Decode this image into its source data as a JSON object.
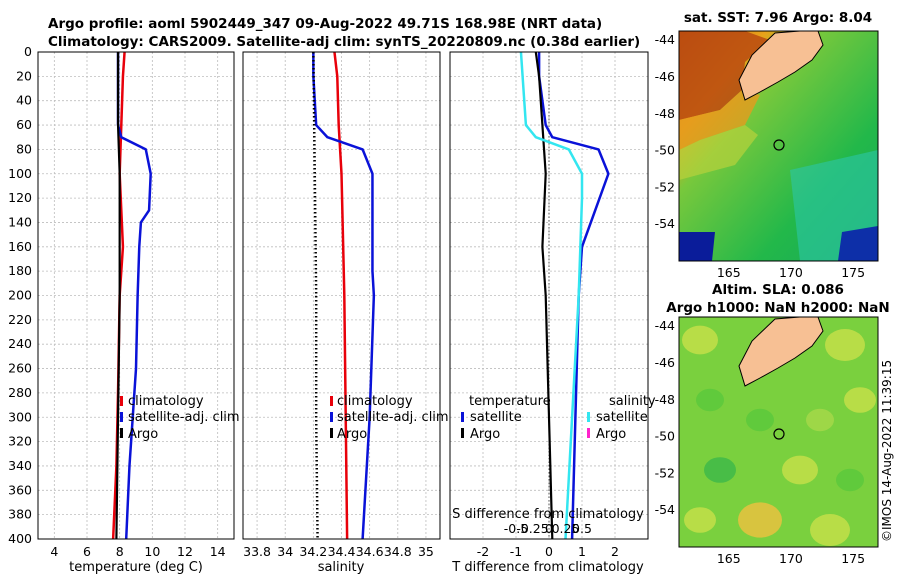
{
  "title_line1": "Argo profile: aoml 5902449_347 09-Aug-2022 49.71S 168.98E (NRT data)",
  "title_line2": "Climatology: CARS2009. Satellite-adj clim: synTS_20220809.nc (0.38d earlier)",
  "copyright": "©IMOS 14-Aug-2022 11:39:15",
  "colors": {
    "climatology": "#e8000a",
    "satellite": "#0a12d8",
    "argo": "#000000",
    "sal_satellite": "#33e6f0",
    "sal_argo": "#ff22cc"
  },
  "chart_data": [
    {
      "type": "line",
      "name": "temperature",
      "xlabel": "temperature (deg C)",
      "ylabel": "",
      "xlim": [
        3,
        15
      ],
      "ylim": [
        0,
        400
      ],
      "xticks": [
        4,
        6,
        8,
        10,
        12,
        14
      ],
      "yticks": [
        0,
        20,
        40,
        60,
        80,
        100,
        120,
        140,
        160,
        180,
        200,
        220,
        240,
        260,
        280,
        300,
        320,
        340,
        360,
        380,
        400
      ],
      "legend": [
        "climatology",
        "satellite-adj. clim",
        "Argo"
      ],
      "series": [
        {
          "name": "climatology",
          "color": "#e8000a",
          "depth": [
            0,
            20,
            60,
            100,
            160,
            200,
            280,
            340,
            400
          ],
          "values": [
            8.3,
            8.2,
            8.1,
            8.0,
            8.2,
            8.0,
            7.9,
            7.8,
            7.6
          ]
        },
        {
          "name": "satellite-adj. clim",
          "color": "#0a12d8",
          "depth": [
            0,
            20,
            60,
            70,
            80,
            100,
            130,
            140,
            160,
            200,
            260,
            300,
            340,
            400
          ],
          "values": [
            7.9,
            7.9,
            7.9,
            8.1,
            9.6,
            9.9,
            9.8,
            9.3,
            9.2,
            9.1,
            9.0,
            8.8,
            8.6,
            8.4
          ]
        },
        {
          "name": "Argo",
          "color": "#000000",
          "depth": [
            0,
            60,
            100,
            200,
            300,
            400
          ],
          "values": [
            7.9,
            7.9,
            8.0,
            8.0,
            7.9,
            7.8
          ]
        }
      ]
    },
    {
      "type": "line",
      "name": "salinity",
      "xlabel": "salinity",
      "xlim": [
        33.7,
        35.1
      ],
      "ylim": [
        0,
        400
      ],
      "xticks": [
        33.8,
        34,
        34.2,
        34.4,
        34.6,
        34.8,
        35
      ],
      "xticklabels": [
        "33.8",
        "34",
        "34.2",
        "34.4",
        "34.6",
        "34.8",
        "35"
      ],
      "legend": [
        "climatology",
        "satellite-adj. clim",
        "Argo"
      ],
      "series": [
        {
          "name": "climatology",
          "color": "#e8000a",
          "depth": [
            0,
            20,
            60,
            100,
            200,
            300,
            400
          ],
          "values": [
            34.35,
            34.37,
            34.38,
            34.4,
            34.42,
            34.43,
            34.44
          ]
        },
        {
          "name": "satellite-adj. clim",
          "color": "#0a12d8",
          "depth": [
            0,
            20,
            60,
            70,
            80,
            100,
            120,
            180,
            200,
            300,
            400
          ],
          "values": [
            34.2,
            34.2,
            34.22,
            34.3,
            34.55,
            34.62,
            34.62,
            34.62,
            34.63,
            34.6,
            34.55
          ]
        },
        {
          "name": "Argo",
          "color": "#000000",
          "depth": [
            0,
            100,
            200,
            300,
            400
          ],
          "values": [
            34.2,
            34.21,
            34.22,
            34.22,
            34.23
          ]
        }
      ]
    },
    {
      "type": "line",
      "name": "difference",
      "xlabel": "T difference from climatology",
      "xlabel_top": "S difference from climatology",
      "xlim": [
        -3,
        3
      ],
      "ylim": [
        0,
        400
      ],
      "xticks": [
        -2,
        -1,
        0,
        1,
        2
      ],
      "xticks_s": [
        -0.5,
        -0.25,
        0,
        0.25,
        0.5
      ],
      "xticklabels_s": [
        "-0.5",
        "-0.25",
        "0",
        "0.25",
        "0.5"
      ],
      "legend_t_title": "temperature",
      "legend_s_title": "salinity",
      "legend_t": [
        "satellite",
        "Argo"
      ],
      "legend_s": [
        "satellite",
        "Argo"
      ],
      "series": [
        {
          "name": "temperature satellite",
          "color": "#0a12d8",
          "depth": [
            0,
            20,
            60,
            70,
            80,
            100,
            130,
            160,
            200,
            300,
            400
          ],
          "values": [
            -0.3,
            -0.3,
            -0.1,
            0.1,
            1.5,
            1.8,
            1.4,
            1.0,
            0.9,
            0.8,
            0.7
          ]
        },
        {
          "name": "temperature Argo",
          "color": "#000000",
          "depth": [
            0,
            20,
            60,
            100,
            160,
            200,
            300,
            400
          ],
          "values": [
            -0.4,
            -0.3,
            -0.2,
            -0.1,
            -0.2,
            -0.1,
            0.0,
            0.1
          ]
        },
        {
          "name": "salinity satellite",
          "color": "#33e6f0",
          "depth": [
            0,
            20,
            60,
            70,
            80,
            100,
            120,
            200,
            300,
            400
          ],
          "values": [
            -0.85,
            -0.8,
            -0.7,
            -0.4,
            0.6,
            1.0,
            1.0,
            0.9,
            0.7,
            0.5
          ]
        },
        {
          "name": "salinity Argo",
          "color": "#ff22cc",
          "depth": [],
          "values": []
        }
      ]
    },
    {
      "type": "heatmap",
      "name": "sst-map",
      "title": "sat. SST: 7.96 Argo: 8.04",
      "xlim": [
        161,
        177
      ],
      "ylim": [
        -56,
        -43.5
      ],
      "xticks": [
        165,
        170,
        175
      ],
      "yticks": [
        -44,
        -46,
        -48,
        -50,
        -52,
        -54
      ],
      "float_location": [
        168.98,
        -49.71
      ]
    },
    {
      "type": "heatmap",
      "name": "sla-map",
      "title_line1": "Altim. SLA: 0.086",
      "title_line2": "Argo h1000: NaN h2000: NaN",
      "xlim": [
        161,
        177
      ],
      "ylim": [
        -56,
        -43.5
      ],
      "xticks": [
        165,
        170,
        175
      ],
      "yticks": [
        -44,
        -46,
        -48,
        -50,
        -52,
        -54
      ],
      "float_location": [
        168.98,
        -49.71
      ]
    }
  ]
}
